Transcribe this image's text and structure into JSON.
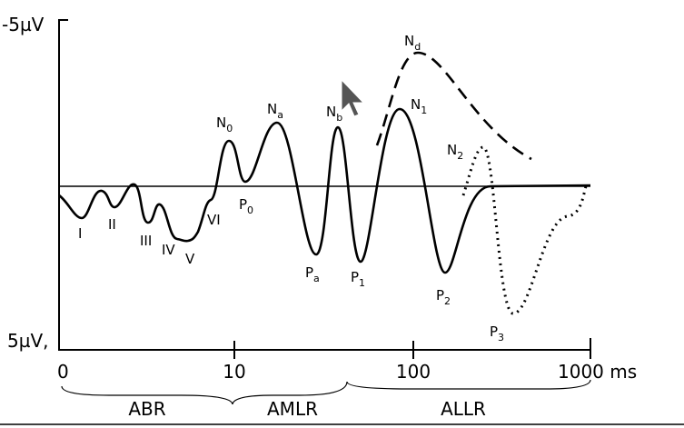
{
  "axis": {
    "y_top": "-5µV",
    "y_bottom": "5µV,",
    "x_ticks": [
      "0",
      "10",
      "100",
      "1000 ms"
    ]
  },
  "regions": [
    "ABR",
    "AMLR",
    "ALLR"
  ],
  "peaks": [
    {
      "base": "N",
      "sub": "d"
    },
    {
      "base": "N",
      "sub": "1"
    },
    {
      "base": "N",
      "sub": "2"
    },
    {
      "base": "N",
      "sub": "0"
    },
    {
      "base": "N",
      "sub": "a"
    },
    {
      "base": "N",
      "sub": "b"
    },
    {
      "base": "P",
      "sub": "a"
    },
    {
      "base": "P",
      "sub": "1"
    },
    {
      "base": "P",
      "sub": "2"
    },
    {
      "base": "P",
      "sub": "3"
    },
    {
      "base": "P",
      "sub": "0"
    },
    {
      "base": "I"
    },
    {
      "base": "II"
    },
    {
      "base": "III"
    },
    {
      "base": "IV"
    },
    {
      "base": "V"
    },
    {
      "base": "VI"
    }
  ]
}
